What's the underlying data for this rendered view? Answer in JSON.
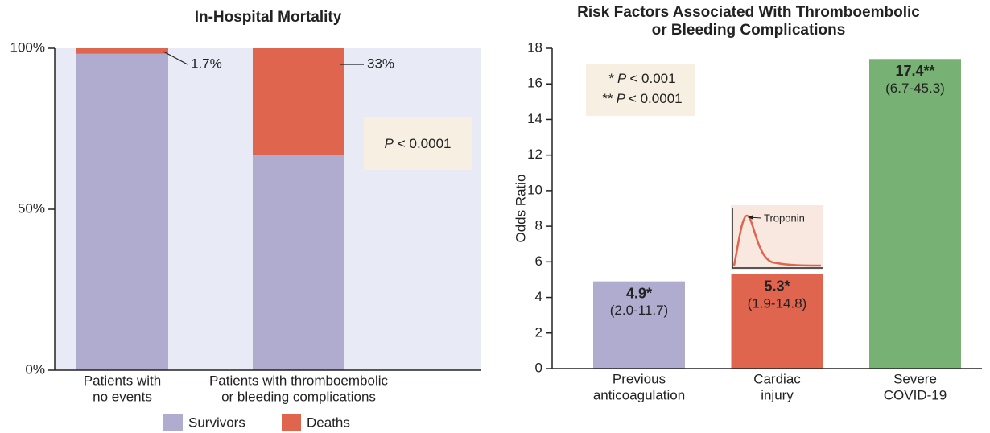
{
  "chart_data": [
    {
      "type": "bar",
      "stacked": true,
      "title": [
        "In-Hospital Mortality"
      ],
      "categories": [
        [
          "Patients with",
          "no events"
        ],
        [
          "Patients with thromboembolic",
          "or bleeding complications"
        ]
      ],
      "series": [
        {
          "name": "Survivors",
          "color": "#b0accf",
          "values": [
            98.3,
            67
          ]
        },
        {
          "name": "Deaths",
          "color": "#e0654f",
          "values": [
            1.7,
            33
          ],
          "value_labels": [
            "1.7%",
            "33%"
          ]
        }
      ],
      "annotation": [
        "P",
        "< 0.0001"
      ],
      "ylim": [
        0,
        100
      ],
      "yticks": [
        {
          "value": 0,
          "label": "0%"
        },
        {
          "value": 50,
          "label": "50%"
        },
        {
          "value": 100,
          "label": "100%"
        }
      ],
      "background": "#e8ebf6",
      "legend": "bottom"
    },
    {
      "type": "bar",
      "title": [
        "Risk Factors Associated With Thromboembolic",
        "or Bleeding Complications"
      ],
      "y_label": "Odds Ratio",
      "categories": [
        [
          "Previous",
          "anticoagulation"
        ],
        [
          "Cardiac",
          "injury"
        ],
        [
          "Severe",
          "COVID-19"
        ]
      ],
      "values": [
        4.9,
        5.3,
        17.4
      ],
      "value_labels": [
        "4.9*",
        "5.3*",
        "17.4**"
      ],
      "ci_labels": [
        "(2.0-11.7)",
        "(1.9-14.8)",
        "(6.7-45.3)"
      ],
      "colors": [
        "#b0accf",
        "#e0654f",
        "#77b274"
      ],
      "notes": [
        [
          "*",
          "P",
          "< 0.001"
        ],
        [
          "**",
          "P",
          "< 0.0001"
        ]
      ],
      "inset_label": "Troponin",
      "ylim": [
        0,
        18
      ],
      "yticks": [
        0,
        2,
        4,
        6,
        8,
        10,
        12,
        14,
        16,
        18
      ]
    }
  ]
}
